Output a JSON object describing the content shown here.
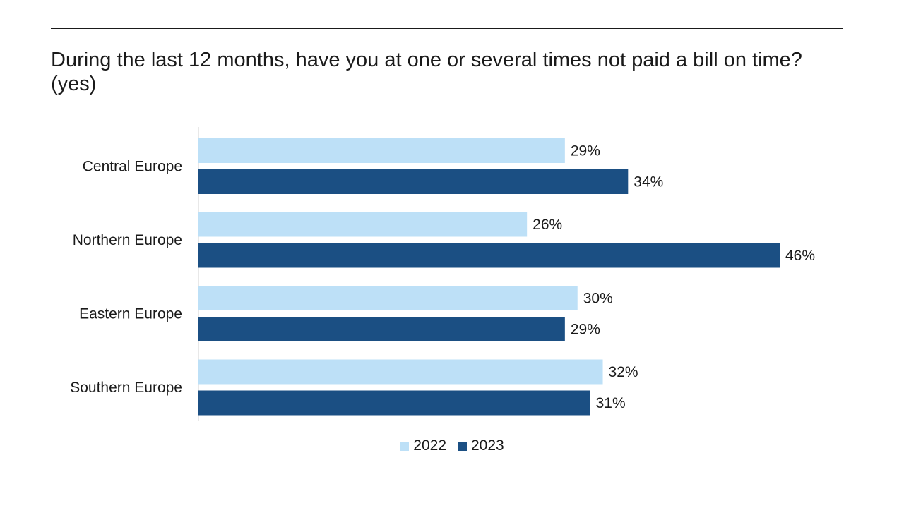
{
  "chart_data": {
    "type": "bar",
    "orientation": "horizontal",
    "title": "During the last 12 months, have you at one or several times not paid a bill on time? (yes)",
    "categories": [
      "Central Europe",
      "Northern Europe",
      "Eastern Europe",
      "Southern Europe"
    ],
    "series": [
      {
        "name": "2022",
        "color": "#bde0f7",
        "values": [
          29,
          26,
          30,
          32
        ],
        "labels": [
          "29%",
          "26%",
          "30%",
          "32%"
        ]
      },
      {
        "name": "2023",
        "color": "#1b4f83",
        "values": [
          34,
          46,
          29,
          31
        ],
        "labels": [
          "34%",
          "46%",
          "29%",
          "31%"
        ]
      }
    ],
    "value_unit": "%",
    "xlim": [
      0,
      46
    ],
    "grid": false,
    "legend_position": "bottom-center"
  }
}
